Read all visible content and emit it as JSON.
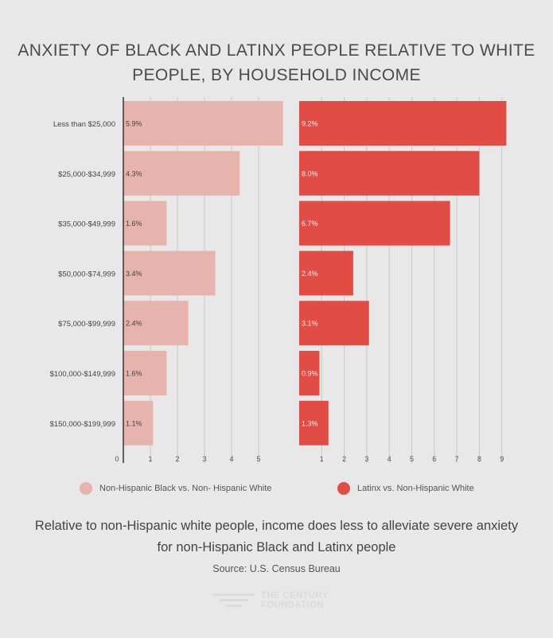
{
  "title_lines": [
    "ANXIETY OF BLACK AND LATINX PEOPLE RELATIVE TO WHITE",
    "PEOPLE, BY HOUSEHOLD INCOME"
  ],
  "chart_data": {
    "type": "bar",
    "orientation": "horizontal",
    "categories": [
      "Less than $25,000",
      "$25,000-$34,999",
      "$35,000-$49,999",
      "$50,000-$74,999",
      "$75,000-$99,999",
      "$100,000-$149,999",
      "$150,000-$199,999"
    ],
    "series": [
      {
        "name": "Non-Hispanic Black vs. Non- Hispanic White",
        "values": [
          5.9,
          4.3,
          1.6,
          3.4,
          2.4,
          1.6,
          1.1
        ],
        "labels": [
          "5.9%",
          "4.3%",
          "1.6%",
          "3.4%",
          "2.4%",
          "1.6%",
          "1.1%"
        ],
        "color": "#e6b3ad",
        "xlim": [
          0,
          5.9
        ],
        "ticks": [
          0,
          1,
          2,
          3,
          4,
          5
        ]
      },
      {
        "name": "Latinx vs. Non-Hispanic White",
        "values": [
          9.2,
          8.0,
          6.7,
          2.4,
          3.1,
          0.9,
          1.3
        ],
        "labels": [
          "9.2%",
          "8.0%",
          "6.7%",
          "2.4%",
          "3.1%",
          "0.9%",
          "1.3%"
        ],
        "color": "#e14d45",
        "xlim": [
          0,
          9.2
        ],
        "ticks": [
          1,
          2,
          3,
          4,
          5,
          6,
          7,
          8,
          9
        ]
      }
    ],
    "grid": true,
    "legend": "bottom"
  },
  "legend": {
    "black_label": "Non-Hispanic Black vs. Non- Hispanic White",
    "latinx_label": "Latinx vs. Non-Hispanic White",
    "black_color": "#e6b3ad",
    "latinx_color": "#e14d45"
  },
  "subtitle_lines": [
    "Relative to non-Hispanic white people, income does less to alleviate severe anxiety",
    "for non-Hispanic Black and Latinx people"
  ],
  "source": "Source: U.S. Census Bureau",
  "brand": {
    "line1": "THE CENTURY",
    "line2": "FOUNDATION"
  }
}
